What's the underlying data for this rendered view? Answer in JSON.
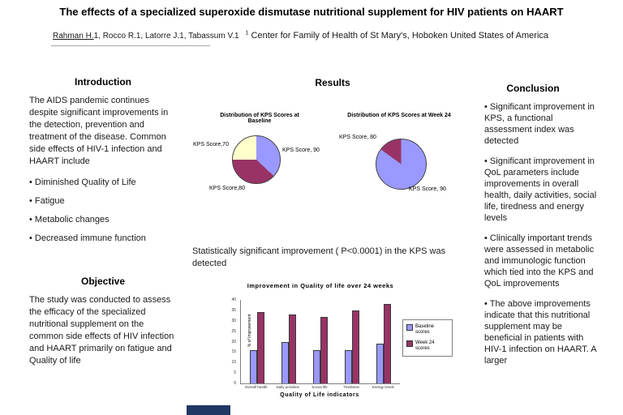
{
  "poster": {
    "title": "The effects of a specialized superoxide dismutase nutritional supplement for HIV patients on HAART",
    "author_underlined": "Rahman H.",
    "authors_rest": "1, Rocco R.1, Latorre J.1, Tabassum V.1",
    "affiliation_sup": "1",
    "affiliation": "Center for Family of Health of St Mary's, Hoboken United States of America"
  },
  "introduction": {
    "heading": "Introduction",
    "body": "The AIDS pandemic continues despite significant improvements in the detection, prevention and treatment of the disease. Common side effects of HIV-1 infection and HAART include",
    "bullets": [
      "Diminished Quality of Life",
      "Fatigue",
      "Metabolic changes",
      "Decreased immune function"
    ]
  },
  "objective": {
    "heading": "Objective",
    "body": "The study was conducted to assess the efficacy of the specialized nutritional supplement on the common side effects of HIV infection and HAART primarily on fatigue and Quality of life"
  },
  "results": {
    "heading": "Results",
    "stat_note": "Statistically significant improvement ( P<0.0001) in the KPS was detected"
  },
  "conclusion": {
    "heading": "Conclusion",
    "bullets": [
      "Significant improvement in KPS, a functional assessment index was detected",
      "Significant improvement in QoL parameters include improvements in overall health, daily activities, social life, tiredness and energy levels",
      "Clinically important trends were assessed in metabolic and immunologic function which tied into the KPS and QoL improvements",
      "The above improvements indicate that this nutritional supplement may be beneficial in patients with HIV-1 infection on HAART.  A larger"
    ]
  },
  "chart_data": [
    {
      "type": "pie",
      "title": "Distribution of KPS Scores at Baseline",
      "slices": [
        {
          "label": "KPS Score, 90",
          "value": 37,
          "color": "#9999FF"
        },
        {
          "label": "KPS Score,80",
          "value": 38,
          "color": "#993366"
        },
        {
          "label": "KPS Score,70",
          "value": 25,
          "color": "#FFFFCC"
        }
      ]
    },
    {
      "type": "pie",
      "title": "Distribution of  KPS Scores at Week 24",
      "slices": [
        {
          "label": "KPS Score, 90",
          "value": 85,
          "color": "#9999FF"
        },
        {
          "label": "KPS Score, 80",
          "value": 15,
          "color": "#993366"
        }
      ]
    },
    {
      "type": "bar",
      "title": "Improvement in Quality of life over 24 weeks",
      "xlabel": "Quality of Life indicators",
      "ylabel": "% of Improvement",
      "ylim": [
        0,
        40
      ],
      "yticks": [
        0,
        5,
        10,
        15,
        20,
        25,
        30,
        35,
        40
      ],
      "grid": false,
      "legend_position": "right",
      "categories": [
        "Overall health",
        "Daily activities",
        "Social life",
        "Tiredness",
        "Energy levels"
      ],
      "series": [
        {
          "name": "Baseline scores",
          "color": "#9999FF",
          "values": [
            16,
            20,
            16,
            16,
            19
          ]
        },
        {
          "name": "Week 24 scores",
          "color": "#993366",
          "values": [
            34,
            33,
            32,
            35,
            38
          ]
        }
      ]
    }
  ]
}
